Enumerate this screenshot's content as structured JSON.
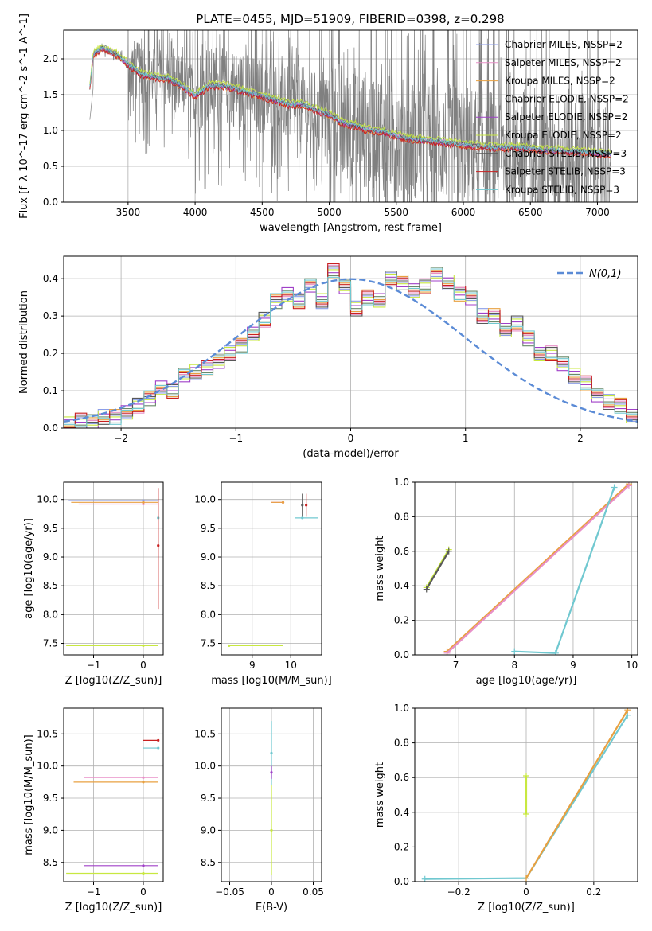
{
  "figure": {
    "title": "PLATE=0455, MJD=51909, FIBERID=0398, z=0.298"
  },
  "series_styles": [
    {
      "name": "Chabrier MILES, N_SSP=2",
      "color": "#8c9ee8"
    },
    {
      "name": "Salpeter MILES, N_SSP=2",
      "color": "#e890c8"
    },
    {
      "name": "Kroupa MILES, N_SSP=2",
      "color": "#e8a040"
    },
    {
      "name": "Chabrier ELODIE, N_SSP=2",
      "color": "#6a8a6a"
    },
    {
      "name": "Salpeter ELODIE, N_SSP=2",
      "color": "#a040c8"
    },
    {
      "name": "Kroupa ELODIE, N_SSP=2",
      "color": "#c8e840"
    },
    {
      "name": "Chabrier STELIB, N_SSP=3",
      "color": "#585858"
    },
    {
      "name": "Salpeter STELIB, N_SSP=3",
      "color": "#c82020"
    },
    {
      "name": "Kroupa STELIB, N_SSP=3",
      "color": "#70c8d0"
    }
  ],
  "chart_data": [
    {
      "id": "spectrum",
      "type": "line",
      "xlabel": "wavelength [Angstrom, rest frame]",
      "ylabel": "Flux [f_λ 10^-17 erg cm^-2 s^-1 A^-1]",
      "xlim": [
        3020,
        7300
      ],
      "ylim": [
        0,
        2.4
      ],
      "xticks": [
        3500,
        4000,
        4500,
        5000,
        5500,
        6000,
        6500,
        7000
      ],
      "yticks": [
        0.0,
        0.5,
        1.0,
        1.5,
        2.0
      ],
      "grid": true,
      "legend_position": "upper right",
      "data_series": {
        "name": "data",
        "color": "#808080"
      },
      "model_continuum": {
        "x": [
          3215,
          3240,
          3300,
          3400,
          3500,
          3600,
          3700,
          3800,
          3900,
          3950,
          4000,
          4100,
          4200,
          4300,
          4400,
          4500,
          4600,
          4700,
          4800,
          4900,
          5000,
          5100,
          5200,
          5300,
          5400,
          5500,
          5600,
          5700,
          5800,
          5900,
          6000,
          6100,
          6200,
          6300,
          6400,
          6500,
          6600,
          6700,
          6800,
          6900,
          7000,
          7100
        ],
        "y": [
          1.6,
          2.05,
          2.15,
          2.08,
          1.92,
          1.78,
          1.74,
          1.72,
          1.62,
          1.55,
          1.48,
          1.62,
          1.62,
          1.58,
          1.52,
          1.48,
          1.42,
          1.36,
          1.36,
          1.28,
          1.22,
          1.1,
          1.06,
          1.0,
          0.98,
          0.92,
          0.88,
          0.86,
          0.85,
          0.82,
          0.8,
          0.78,
          0.76,
          0.76,
          0.76,
          0.74,
          0.72,
          0.72,
          0.7,
          0.7,
          0.68,
          0.66
        ]
      }
    },
    {
      "id": "residuals",
      "type": "bar",
      "xlabel": "(data-model)/error",
      "ylabel": "Normed distribution",
      "xlim": [
        -2.5,
        2.5
      ],
      "ylim": [
        0,
        0.46
      ],
      "xticks": [
        -2,
        -1,
        0,
        1,
        2
      ],
      "yticks": [
        0.0,
        0.1,
        0.2,
        0.3,
        0.4
      ],
      "grid": true,
      "legend_position": "upper right",
      "legend_label": "N(0,1)",
      "gaussian_color": "#5b8bd6",
      "bin_width": 0.1,
      "bin_start": -2.5,
      "histogram": [
        0.01,
        0.02,
        0.02,
        0.03,
        0.03,
        0.04,
        0.06,
        0.08,
        0.11,
        0.1,
        0.14,
        0.15,
        0.16,
        0.18,
        0.2,
        0.22,
        0.25,
        0.29,
        0.34,
        0.36,
        0.34,
        0.38,
        0.34,
        0.42,
        0.38,
        0.32,
        0.35,
        0.34,
        0.4,
        0.39,
        0.37,
        0.38,
        0.41,
        0.39,
        0.36,
        0.35,
        0.3,
        0.3,
        0.26,
        0.28,
        0.24,
        0.2,
        0.2,
        0.17,
        0.14,
        0.12,
        0.09,
        0.07,
        0.06,
        0.03
      ]
    },
    {
      "id": "age_vs_Z",
      "type": "scatter",
      "xlabel": "Z [log10(Z/Z_sun)]",
      "ylabel": "age  [log10(age/yr)]",
      "xlim": [
        -1.6,
        0.4
      ],
      "ylim": [
        7.3,
        10.3
      ],
      "xticks": [
        -1,
        0
      ],
      "yticks": [
        7.5,
        8.0,
        8.5,
        9.0,
        9.5,
        10.0
      ],
      "grid": true,
      "points": [
        {
          "series": 0,
          "x": 0.0,
          "y": 9.98,
          "xerr": [
            1.5,
            0.3
          ]
        },
        {
          "series": 1,
          "x": 0.0,
          "y": 9.92,
          "xerr": [
            1.3,
            0.3
          ]
        },
        {
          "series": 2,
          "x": 0.0,
          "y": 9.95,
          "xerr": [
            1.45,
            0.3
          ]
        },
        {
          "series": 8,
          "x": 0.3,
          "y": 9.68,
          "xerr": [
            0.0,
            0.0
          ]
        },
        {
          "series": 5,
          "x": 0.0,
          "y": 7.46,
          "xerr": [
            1.55,
            0.3
          ]
        },
        {
          "series": 7,
          "x": 0.3,
          "y": 9.2,
          "yerr": [
            1.1,
            1.0
          ]
        }
      ]
    },
    {
      "id": "age_vs_mass",
      "type": "scatter",
      "xlabel": "mass [log10(M/M_sun)]",
      "ylabel": "",
      "xlim": [
        8.2,
        10.8
      ],
      "ylim": [
        7.3,
        10.3
      ],
      "xticks": [
        9,
        10
      ],
      "yticks": [
        7.5,
        8.0,
        8.5,
        9.0,
        9.5,
        10.0
      ],
      "grid": true,
      "points": [
        {
          "series": 1,
          "x": 9.8,
          "y": 9.95,
          "xerr": [
            0.3,
            0.0
          ]
        },
        {
          "series": 2,
          "x": 9.8,
          "y": 9.95,
          "xerr": [
            0.3,
            0.0
          ]
        },
        {
          "series": 8,
          "x": 10.3,
          "y": 9.68,
          "xerr": [
            0.2,
            0.4
          ]
        },
        {
          "series": 5,
          "x": 8.4,
          "y": 7.46,
          "xerr": [
            0.0,
            1.4
          ]
        },
        {
          "series": 6,
          "x": 10.3,
          "y": 9.9,
          "yerr": [
            0.2,
            0.2
          ]
        },
        {
          "series": 7,
          "x": 10.4,
          "y": 9.9,
          "yerr": [
            0.2,
            0.2
          ]
        }
      ]
    },
    {
      "id": "massweight_vs_age",
      "type": "line",
      "xlabel": "age  [log10(age/yr)]",
      "ylabel": "mass weight",
      "xlim": [
        6.3,
        10.1
      ],
      "ylim": [
        0.0,
        1.0
      ],
      "xticks": [
        7,
        8,
        9,
        10
      ],
      "yticks": [
        0.0,
        0.2,
        0.4,
        0.6,
        0.8,
        1.0
      ],
      "grid": true,
      "lines": [
        {
          "series": 5,
          "x": [
            6.5,
            6.88
          ],
          "y": [
            0.39,
            0.61
          ]
        },
        {
          "series": 6,
          "x": [
            6.5,
            6.88
          ],
          "y": [
            0.38,
            0.6
          ]
        },
        {
          "series": 2,
          "x": [
            6.85,
            9.95
          ],
          "y": [
            0.02,
            0.99
          ]
        },
        {
          "series": 1,
          "x": [
            6.85,
            9.95
          ],
          "y": [
            0.01,
            0.98
          ]
        },
        {
          "series": 8,
          "x": [
            8.0,
            8.7,
            9.7
          ],
          "y": [
            0.02,
            0.01,
            0.97
          ]
        }
      ]
    },
    {
      "id": "mass_vs_Z",
      "type": "scatter",
      "xlabel": "Z [log10(Z/Z_sun)]",
      "ylabel": "mass [log10(M/M_sun)]",
      "xlim": [
        -1.6,
        0.4
      ],
      "ylim": [
        8.2,
        10.9
      ],
      "xticks": [
        -1,
        0
      ],
      "yticks": [
        8.5,
        9.0,
        9.5,
        10.0,
        10.5
      ],
      "grid": true,
      "points": [
        {
          "series": 1,
          "x": 0.0,
          "y": 9.82,
          "xerr": [
            1.2,
            0.3
          ]
        },
        {
          "series": 2,
          "x": 0.0,
          "y": 9.75,
          "xerr": [
            1.4,
            0.3
          ]
        },
        {
          "series": 4,
          "x": 0.0,
          "y": 8.45,
          "xerr": [
            1.2,
            0.3
          ]
        },
        {
          "series": 5,
          "x": 0.0,
          "y": 8.33,
          "xerr": [
            1.55,
            0.3
          ]
        },
        {
          "series": 7,
          "x": 0.3,
          "y": 10.4,
          "xerr": [
            0.3,
            0.0
          ]
        },
        {
          "series": 8,
          "x": 0.3,
          "y": 10.28,
          "xerr": [
            0.3,
            0.0
          ]
        }
      ]
    },
    {
      "id": "mass_vs_EBV",
      "type": "scatter",
      "xlabel": "E(B-V)",
      "ylabel": "",
      "xlim": [
        -0.06,
        0.06
      ],
      "ylim": [
        8.2,
        10.9
      ],
      "xticks": [
        -0.05,
        0.0,
        0.05
      ],
      "yticks": [
        8.5,
        9.0,
        9.5,
        10.0,
        10.5
      ],
      "grid": true,
      "points": [
        {
          "series": 8,
          "x": 0.0,
          "y": 10.2,
          "yerr": [
            0.5,
            0.5
          ]
        },
        {
          "series": 5,
          "x": 0.0,
          "y": 9.0,
          "yerr": [
            0.7,
            0.7
          ]
        },
        {
          "series": 4,
          "x": 0.0,
          "y": 9.9,
          "yerr": [
            0.1,
            0.1
          ]
        }
      ]
    },
    {
      "id": "massweight_vs_Z",
      "type": "line",
      "xlabel": "Z [log10(Z/Z_sun)]",
      "ylabel": "mass weight",
      "xlim": [
        -0.33,
        0.33
      ],
      "ylim": [
        0.0,
        1.0
      ],
      "xticks": [
        -0.2,
        0.0,
        0.2
      ],
      "yticks": [
        0.0,
        0.2,
        0.4,
        0.6,
        0.8,
        1.0
      ],
      "grid": true,
      "lines": [
        {
          "series": 8,
          "x": [
            -0.3,
            0.0,
            0.3
          ],
          "y": [
            0.015,
            0.02,
            0.96
          ]
        },
        {
          "series": 2,
          "x": [
            0.0,
            0.3
          ],
          "y": [
            0.02,
            0.99
          ]
        },
        {
          "series": 5,
          "x": [
            0.0,
            0.0
          ],
          "y": [
            0.39,
            0.61
          ]
        }
      ]
    }
  ]
}
